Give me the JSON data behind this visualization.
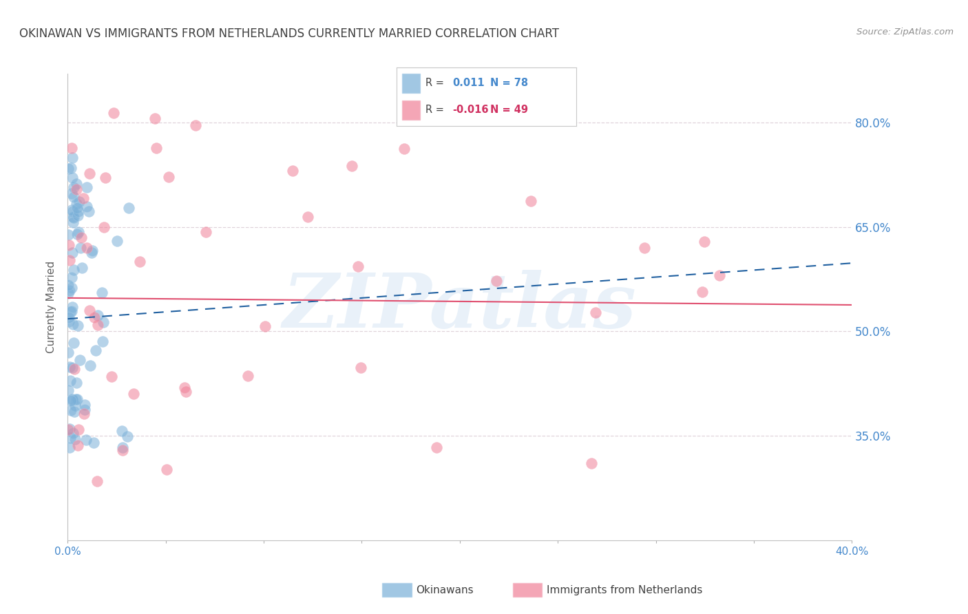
{
  "title": "OKINAWAN VS IMMIGRANTS FROM NETHERLANDS CURRENTLY MARRIED CORRELATION CHART",
  "source": "Source: ZipAtlas.com",
  "ylabel": "Currently Married",
  "yaxis_labels": [
    "80.0%",
    "65.0%",
    "50.0%",
    "35.0%"
  ],
  "yaxis_values": [
    0.8,
    0.65,
    0.5,
    0.35
  ],
  "okinawan_color": "#7ab0d8",
  "netherlands_color": "#f08098",
  "okinawan_edge": "#a8cce8",
  "netherlands_edge": "#f4b0c0",
  "trend_blue_color": "#2060a0",
  "trend_pink_color": "#e05070",
  "watermark_text": "ZIPatlas",
  "watermark_color": "#c8ddf0",
  "title_color": "#404040",
  "title_fontsize": 12,
  "source_color": "#909090",
  "axis_label_color": "#4488cc",
  "background_color": "#ffffff",
  "xlim": [
    0.0,
    0.4
  ],
  "ylim": [
    0.2,
    0.87
  ],
  "grid_color": "#ddd0d8",
  "legend_R1": "0.011",
  "legend_N1": "78",
  "legend_R2": "-0.016",
  "legend_N2": "49",
  "legend_color1": "#7ab0d8",
  "legend_color2": "#f08098",
  "bottom_legend_label1": "Okinawans",
  "bottom_legend_label2": "Immigrants from Netherlands"
}
